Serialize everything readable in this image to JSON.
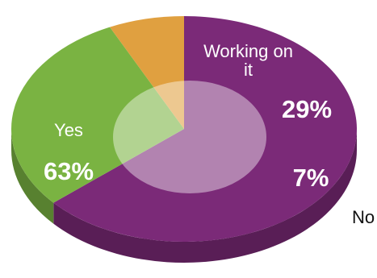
{
  "chart_data": {
    "type": "pie",
    "categories": [
      "Yes",
      "Working on it",
      "No"
    ],
    "values": [
      63,
      29,
      7
    ],
    "value_labels": [
      "63%",
      "29%",
      "7%"
    ],
    "colors": [
      "#7b2a78",
      "#7ab342",
      "#e0a040"
    ]
  }
}
